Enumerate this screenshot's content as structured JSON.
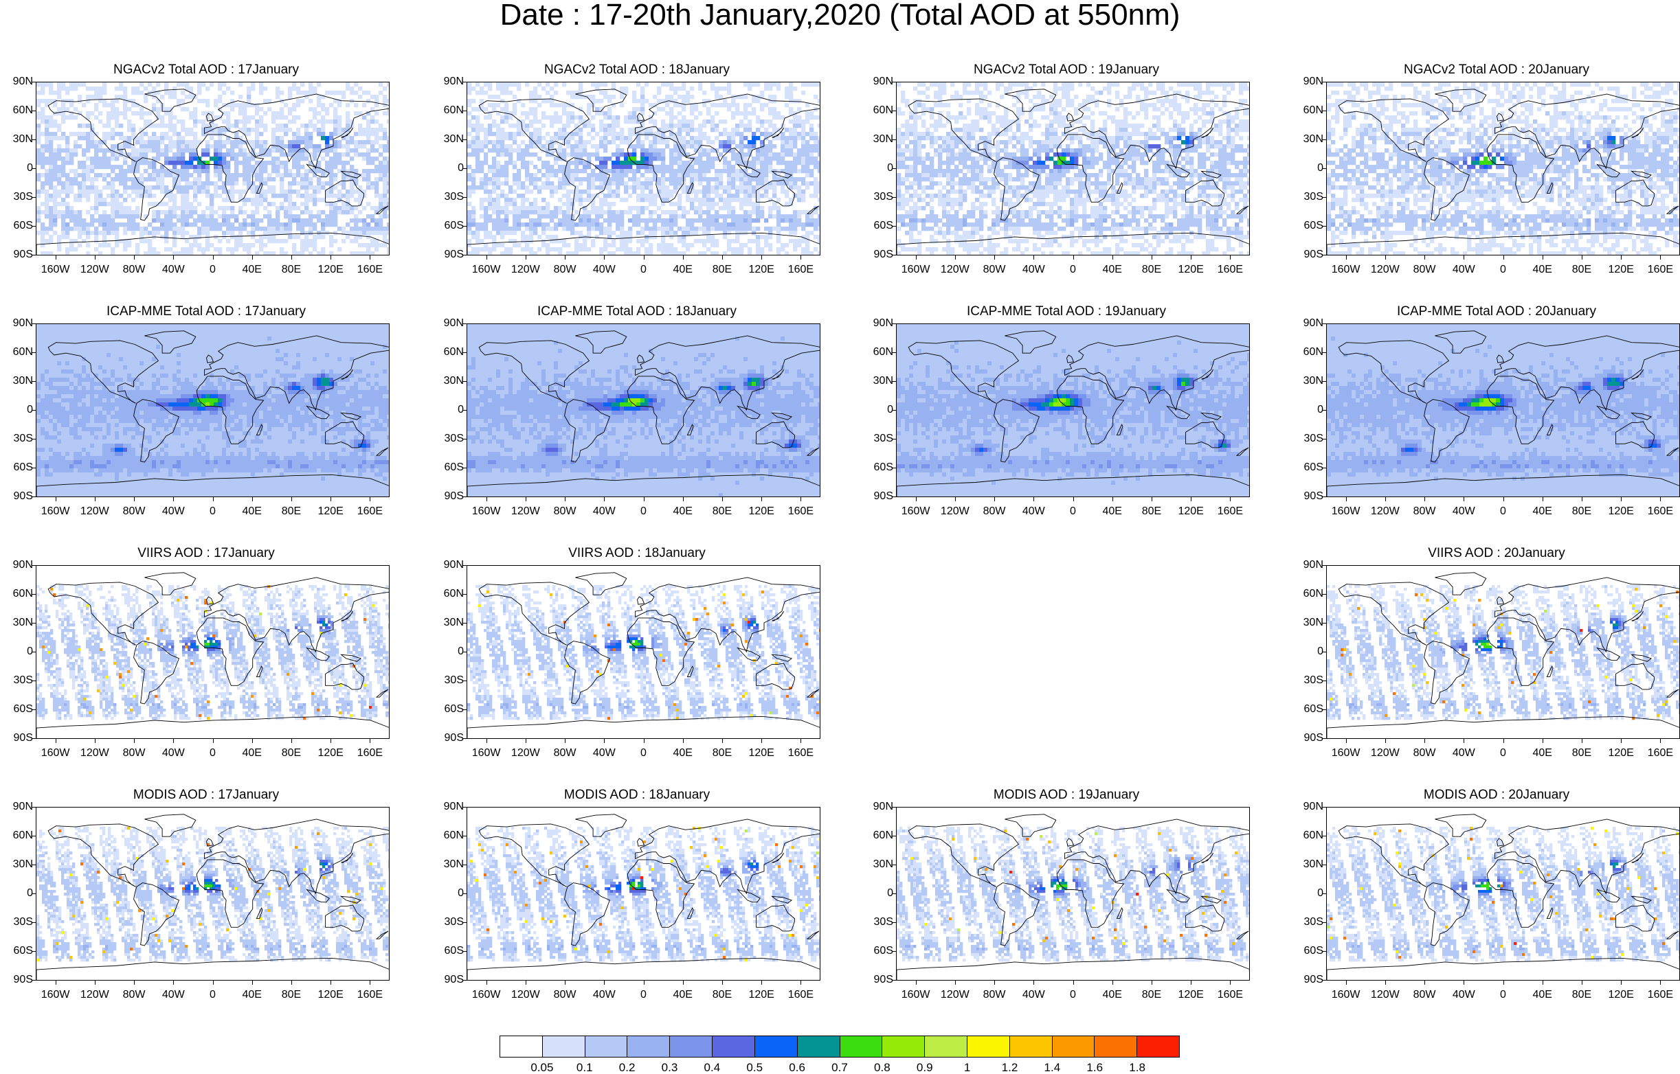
{
  "title": "Date : 17-20th January,2020 (Total AOD at 550nm)",
  "lat_labels": [
    "90N",
    "60N",
    "30N",
    "0",
    "30S",
    "60S",
    "90S"
  ],
  "lon_labels": [
    "160W",
    "120W",
    "80W",
    "40W",
    "0",
    "40E",
    "80E",
    "120E",
    "160E"
  ],
  "panels": [
    {
      "row": 0,
      "col": 0,
      "title": "NGACv2 Total AOD : 17January",
      "source": "NGACv2",
      "day": 17,
      "style": "model-light"
    },
    {
      "row": 0,
      "col": 1,
      "title": "NGACv2 Total AOD : 18January",
      "source": "NGACv2",
      "day": 18,
      "style": "model-light"
    },
    {
      "row": 0,
      "col": 2,
      "title": "NGACv2 Total AOD : 19January",
      "source": "NGACv2",
      "day": 19,
      "style": "model-light"
    },
    {
      "row": 0,
      "col": 3,
      "title": "NGACv2 Total AOD : 20January",
      "source": "NGACv2",
      "day": 20,
      "style": "model-light"
    },
    {
      "row": 1,
      "col": 0,
      "title": "ICAP-MME Total AOD : 17January",
      "source": "ICAP-MME",
      "day": 17,
      "style": "model-full"
    },
    {
      "row": 1,
      "col": 1,
      "title": "ICAP-MME Total AOD : 18January",
      "source": "ICAP-MME",
      "day": 18,
      "style": "model-full"
    },
    {
      "row": 1,
      "col": 2,
      "title": "ICAP-MME Total AOD : 19January",
      "source": "ICAP-MME",
      "day": 19,
      "style": "model-full"
    },
    {
      "row": 1,
      "col": 3,
      "title": "ICAP-MME Total AOD : 20January",
      "source": "ICAP-MME",
      "day": 20,
      "style": "model-full"
    },
    {
      "row": 2,
      "col": 0,
      "title": "VIIRS AOD : 17January",
      "source": "VIIRS",
      "day": 17,
      "style": "swath"
    },
    {
      "row": 2,
      "col": 1,
      "title": "VIIRS AOD : 18January",
      "source": "VIIRS",
      "day": 18,
      "style": "swath"
    },
    {
      "row": 2,
      "col": 3,
      "title": "VIIRS AOD : 20January",
      "source": "VIIRS",
      "day": 20,
      "style": "swath"
    },
    {
      "row": 3,
      "col": 0,
      "title": "MODIS AOD : 17January",
      "source": "MODIS",
      "day": 17,
      "style": "swath"
    },
    {
      "row": 3,
      "col": 1,
      "title": "MODIS AOD : 18January",
      "source": "MODIS",
      "day": 18,
      "style": "swath"
    },
    {
      "row": 3,
      "col": 2,
      "title": "MODIS AOD : 19January",
      "source": "MODIS",
      "day": 19,
      "style": "swath"
    },
    {
      "row": 3,
      "col": 3,
      "title": "MODIS AOD : 20January",
      "source": "MODIS",
      "day": 20,
      "style": "swath"
    }
  ],
  "colorbar": {
    "labels": [
      "0.05",
      "0.1",
      "0.2",
      "0.3",
      "0.4",
      "0.5",
      "0.6",
      "0.7",
      "0.8",
      "0.9",
      "1",
      "1.2",
      "1.4",
      "1.6",
      "1.8"
    ],
    "colors": [
      "#ffffff",
      "#d6e2fb",
      "#b4c9f5",
      "#98b1f1",
      "#7b94ec",
      "#5967e1",
      "#0a64f5",
      "#049393",
      "#3bdd10",
      "#95ea08",
      "#bdee46",
      "#fbf600",
      "#fbc600",
      "#fb9900",
      "#fb7200",
      "#fb1f00"
    ]
  }
}
